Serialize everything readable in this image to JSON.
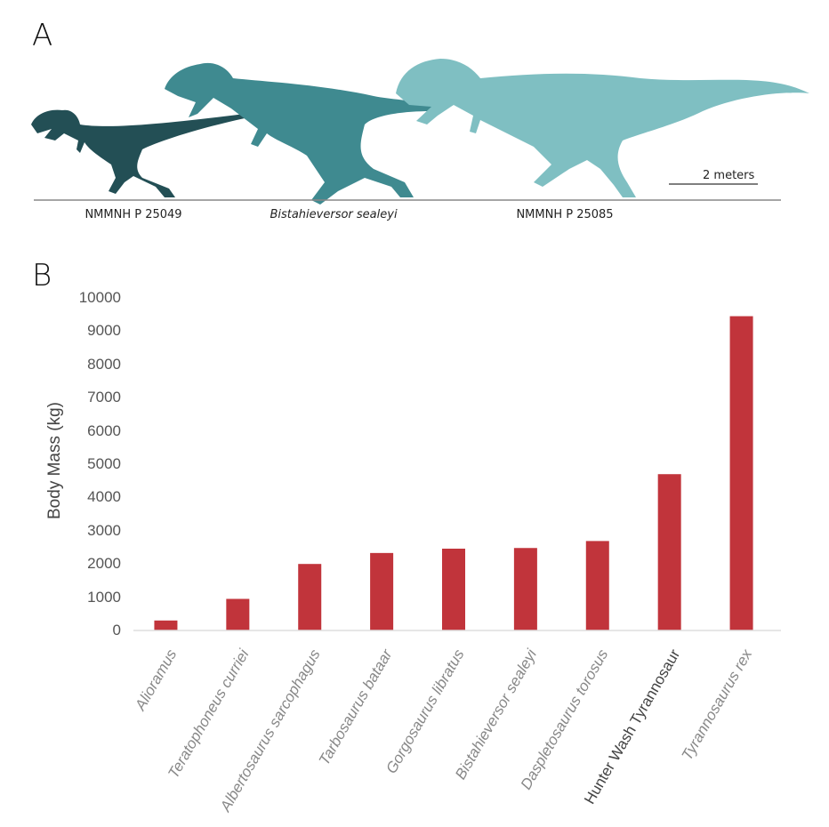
{
  "panel_a": {
    "letter": "A",
    "silhouettes": [
      {
        "label": "NMMNH P 25049",
        "italic": false,
        "color": "#234f55"
      },
      {
        "label": "Bistahieversor sealeyi",
        "italic": true,
        "color": "#3f8a90"
      },
      {
        "label": "NMMNH P 25085",
        "italic": false,
        "color": "#7fbfc2"
      }
    ],
    "scale_bar": "2 meters"
  },
  "chart_data": {
    "panel_letter": "B",
    "type": "bar",
    "categories": [
      "Alioramus",
      "Teratophoneus curriei",
      "Albertosaurus sarcophagus",
      "Tarbosaurus bataar",
      "Gorgosaurus libratus",
      "Bistahieversor sealeyi",
      "Daspletosaurus torosus",
      "Hunter Wash Tyrannosaur",
      "Tyrannosaurus rex"
    ],
    "values": [
      300,
      950,
      2000,
      2330,
      2460,
      2480,
      2690,
      4700,
      9450
    ],
    "ylabel": "Body Mass (kg)",
    "xlabel": "",
    "ylim": [
      0,
      10000
    ],
    "yticks": [
      "0",
      "1000",
      "2000",
      "3000",
      "4000",
      "5000",
      "6000",
      "7000",
      "8000",
      "9000",
      "10000"
    ],
    "bar_color": "#c1343b",
    "grid": false
  }
}
